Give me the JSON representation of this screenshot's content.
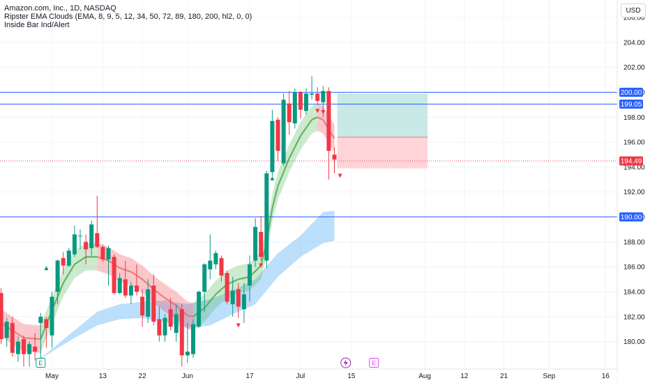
{
  "legend": {
    "title": "Amazon.com, Inc., 1D, NASDAQ",
    "indicator1": "Ripster EMA Clouds (EMA, 8, 9, 5, 12, 34, 50, 72, 89, 180, 200, hl2, 0, 0)",
    "indicator2": "Inside Bar Ind/Alert"
  },
  "currency": "USD",
  "colors": {
    "up": "#089981",
    "down": "#f23645",
    "hline": "#2962ff",
    "cloud_fast_up": "#4caf50",
    "cloud_fast_down": "#f23645",
    "cloud_slow": "#90caf9",
    "profit_zone": "#b2dfdb",
    "loss_zone": "#ffcdd2"
  },
  "chart_data": {
    "type": "candlestick",
    "symbol": "AMZN",
    "interval": "1D",
    "exchange": "NASDAQ",
    "ylim": [
      177.8,
      207.4
    ],
    "y_ticks": [
      "180.00",
      "182.00",
      "184.00",
      "186.00",
      "188.00",
      "190.00",
      "192.00",
      "194.00",
      "196.00",
      "198.00",
      "200.00",
      "202.00",
      "204.00",
      "206.00"
    ],
    "x_ticks": [
      {
        "label": "May",
        "bar": 10
      },
      {
        "label": "13",
        "bar": 19
      },
      {
        "label": "22",
        "bar": 26
      },
      {
        "label": "Jun",
        "bar": 34
      },
      {
        "label": "17",
        "bar": 45
      },
      {
        "label": "Jul",
        "bar": 54
      },
      {
        "label": "15",
        "bar": 63
      },
      {
        "label": "Aug",
        "bar": 76
      },
      {
        "label": "12",
        "bar": 83
      },
      {
        "label": "21",
        "bar": 90
      },
      {
        "label": "Sep",
        "bar": 98
      },
      {
        "label": "16",
        "bar": 108
      }
    ],
    "last_bar": 61,
    "candles": [
      [
        1,
        183.9,
        184.3,
        179.8,
        180.2
      ],
      [
        2,
        180.3,
        181.9,
        179.6,
        181.6
      ],
      [
        3,
        181.5,
        182.0,
        178.8,
        179.1
      ],
      [
        4,
        179.0,
        180.4,
        178.4,
        180.0
      ],
      [
        5,
        180.2,
        180.5,
        178.0,
        179.0
      ],
      [
        6,
        179.0,
        180.0,
        178.0,
        179.8
      ],
      [
        7,
        179.6,
        180.7,
        178.5,
        179.2
      ],
      [
        8,
        181.5,
        182.3,
        178.0,
        182.0
      ],
      [
        9,
        181.8,
        182.0,
        179.5,
        181.1
      ],
      [
        10,
        180.5,
        184.0,
        179.5,
        183.6
      ],
      [
        11,
        184.0,
        186.6,
        183.0,
        186.5
      ],
      [
        12,
        186.7,
        187.2,
        185.4,
        186.1
      ],
      [
        13,
        186.1,
        187.5,
        186.0,
        187.3
      ],
      [
        14,
        187.0,
        189.3,
        186.8,
        188.6
      ],
      [
        15,
        188.5,
        189.0,
        187.4,
        188.5
      ],
      [
        16,
        188.0,
        188.6,
        186.2,
        187.4
      ],
      [
        17,
        187.5,
        189.7,
        186.9,
        189.4
      ],
      [
        18,
        188.7,
        191.7,
        187.5,
        187.6
      ],
      [
        19,
        187.6,
        187.8,
        186.4,
        186.6
      ],
      [
        20,
        186.6,
        187.7,
        184.5,
        187.5
      ],
      [
        21,
        186.8,
        187.0,
        183.8,
        183.9
      ],
      [
        22,
        183.9,
        185.5,
        183.8,
        185.1
      ],
      [
        23,
        185.0,
        186.5,
        183.5,
        183.7
      ],
      [
        24,
        183.7,
        184.8,
        183.0,
        184.5
      ],
      [
        25,
        184.5,
        186.2,
        183.7,
        184.0
      ],
      [
        26,
        183.6,
        184.2,
        181.2,
        182.1
      ],
      [
        27,
        182.0,
        185.0,
        181.5,
        184.2
      ],
      [
        28,
        184.5,
        185.4,
        181.3,
        181.6
      ],
      [
        29,
        181.8,
        182.8,
        180.0,
        180.5
      ],
      [
        30,
        180.5,
        182.2,
        180.0,
        181.9
      ],
      [
        31,
        182.6,
        183.5,
        180.9,
        181.2
      ],
      [
        32,
        180.7,
        183.0,
        180.0,
        182.2
      ],
      [
        33,
        182.6,
        183.0,
        178.0,
        178.9
      ],
      [
        34,
        178.9,
        181.5,
        178.3,
        179.2
      ],
      [
        35,
        179.0,
        181.8,
        178.7,
        181.4
      ],
      [
        36,
        181.2,
        184.1,
        181.1,
        184.0
      ],
      [
        37,
        184.0,
        186.3,
        182.4,
        186.2
      ],
      [
        38,
        185.8,
        188.6,
        185.0,
        186.5
      ],
      [
        39,
        186.2,
        187.3,
        185.8,
        187.1
      ],
      [
        40,
        186.7,
        186.9,
        184.8,
        185.3
      ],
      [
        41,
        185.5,
        185.7,
        183.0,
        183.2
      ],
      [
        42,
        183.0,
        185.2,
        182.0,
        184.1
      ],
      [
        43,
        184.2,
        184.7,
        181.9,
        182.8
      ],
      [
        44,
        182.6,
        184.7,
        181.5,
        183.8
      ],
      [
        45,
        184.5,
        186.9,
        183.2,
        186.2
      ],
      [
        46,
        186.5,
        189.9,
        186.0,
        189.2
      ],
      [
        47,
        188.8,
        190.1,
        186.5,
        186.8
      ],
      [
        48,
        186.5,
        193.7,
        185.9,
        193.5
      ],
      [
        49,
        193.6,
        198.6,
        193.3,
        197.7
      ],
      [
        50,
        197.8,
        198.0,
        194.5,
        195.3
      ],
      [
        51,
        194.3,
        199.9,
        194.1,
        199.4
      ],
      [
        52,
        199.1,
        200.1,
        196.6,
        197.6
      ],
      [
        53,
        197.5,
        200.3,
        197.1,
        200.0
      ],
      [
        54,
        200.0,
        200.1,
        197.9,
        198.6
      ],
      [
        55,
        198.5,
        200.3,
        198.2,
        199.9
      ],
      [
        56,
        199.8,
        201.3,
        199.4,
        199.9
      ],
      [
        57,
        199.9,
        200.4,
        199.0,
        199.3
      ],
      [
        58,
        199.2,
        200.5,
        198.0,
        200.1
      ],
      [
        59,
        200.1,
        200.4,
        193.0,
        195.3
      ],
      [
        60,
        195.0,
        195.6,
        193.5,
        194.6
      ]
    ],
    "ema_fast": [
      [
        1,
        181.5
      ],
      [
        5,
        180.3
      ],
      [
        8,
        180.2
      ],
      [
        10,
        182.5
      ],
      [
        12,
        184.7
      ],
      [
        14,
        186.2
      ],
      [
        16,
        186.8
      ],
      [
        18,
        186.8
      ],
      [
        20,
        186.5
      ],
      [
        22,
        185.9
      ],
      [
        24,
        185.6
      ],
      [
        26,
        185.0
      ],
      [
        28,
        184.2
      ],
      [
        30,
        183.5
      ],
      [
        32,
        182.9
      ],
      [
        34,
        182.1
      ],
      [
        35,
        182.0
      ],
      [
        37,
        182.7
      ],
      [
        39,
        183.8
      ],
      [
        41,
        184.6
      ],
      [
        43,
        185.0
      ],
      [
        45,
        185.2
      ],
      [
        47,
        186.1
      ],
      [
        48,
        188.0
      ],
      [
        49,
        190.7
      ],
      [
        50,
        192.5
      ],
      [
        52,
        194.7
      ],
      [
        54,
        196.5
      ],
      [
        56,
        197.8
      ],
      [
        57,
        198.0
      ],
      [
        58,
        197.8
      ],
      [
        59,
        197.0
      ],
      [
        60,
        196.3
      ]
    ],
    "cloud_slow_top": [
      [
        18,
        182.4
      ],
      [
        22,
        183.0
      ],
      [
        26,
        183.2
      ],
      [
        30,
        183.3
      ],
      [
        34,
        183.0
      ],
      [
        38,
        183.4
      ],
      [
        42,
        184.1
      ],
      [
        46,
        185.0
      ],
      [
        50,
        187.1
      ],
      [
        54,
        188.5
      ],
      [
        58,
        190.4
      ],
      [
        60,
        190.5
      ]
    ],
    "cloud_slow_bottom": [
      [
        7,
        178.3
      ],
      [
        10,
        179.2
      ],
      [
        14,
        180.3
      ],
      [
        18,
        181.3
      ],
      [
        22,
        181.8
      ],
      [
        26,
        181.9
      ],
      [
        30,
        181.6
      ],
      [
        34,
        181.1
      ],
      [
        38,
        181.3
      ],
      [
        42,
        182.2
      ],
      [
        46,
        183.0
      ],
      [
        50,
        185.2
      ],
      [
        54,
        186.8
      ],
      [
        58,
        187.9
      ],
      [
        60,
        188.1
      ]
    ],
    "horizontal_lines": [
      200.0,
      199.05,
      190.0
    ],
    "price_labels": [
      {
        "text": "200.00",
        "value": 200.0,
        "kind": "line"
      },
      {
        "text": "199.05",
        "value": 199.05,
        "kind": "line"
      },
      {
        "text": "194.49",
        "value": 194.49,
        "kind": "last"
      },
      {
        "text": "190.00",
        "value": 190.0,
        "kind": "line"
      }
    ],
    "last_price": 194.49,
    "position": {
      "start_bar": 60.5,
      "end_bar": 76.5,
      "target": 199.9,
      "entry": 196.4,
      "stop": 193.9
    },
    "markers": {
      "triangle_up": [
        [
          9,
          185.9
        ],
        [
          49,
          193.1
        ],
        [
          53,
          199.0
        ]
      ],
      "triangle_down": [
        [
          47,
          186.1
        ],
        [
          43,
          181.3
        ],
        [
          58,
          198.4
        ],
        [
          57,
          198.5
        ],
        [
          61,
          193.3
        ]
      ]
    },
    "events": [
      {
        "label": "E",
        "bar": 8
      },
      {
        "label": "E",
        "bar": 67
      }
    ],
    "dividend_marker_bar": 62
  }
}
